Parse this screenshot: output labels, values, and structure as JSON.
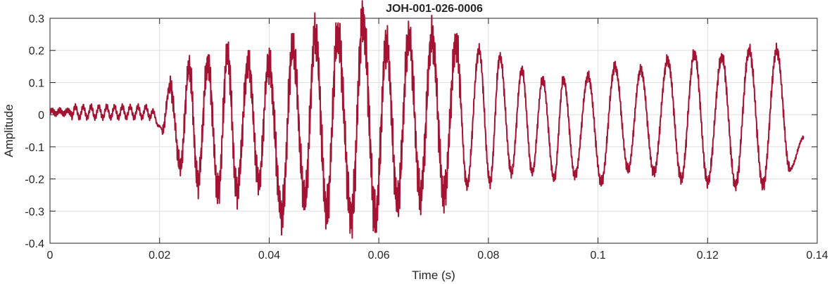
{
  "chart_data": {
    "type": "line",
    "title": "JOH-001-026-0006",
    "xlabel": "Time (s)",
    "ylabel": "Amplitude",
    "xlim": [
      0,
      0.14
    ],
    "ylim": [
      -0.4,
      0.3
    ],
    "xticks": [
      0,
      0.02,
      0.04,
      0.06,
      0.08,
      0.1,
      0.12,
      0.14
    ],
    "xtick_labels": [
      "0",
      "0.02",
      "0.04",
      "0.06",
      "0.08",
      "0.1",
      "0.12",
      "0.14"
    ],
    "yticks": [
      -0.4,
      -0.3,
      -0.2,
      -0.1,
      0,
      0.1,
      0.2,
      0.3
    ],
    "ytick_labels": [
      "-0.4",
      "-0.3",
      "-0.2",
      "-0.1",
      "0",
      "0.1",
      "0.2",
      "0.3"
    ],
    "grid": true,
    "line_color": "#A51332",
    "series": [
      {
        "x_start": 0,
        "x_end": 0.1376,
        "peaks": [
          {
            "t": 0.0219,
            "v": 0.09
          },
          {
            "t": 0.0254,
            "v": 0.15
          },
          {
            "t": 0.0288,
            "v": 0.16
          },
          {
            "t": 0.0324,
            "v": 0.19
          },
          {
            "t": 0.0362,
            "v": 0.16
          },
          {
            "t": 0.0399,
            "v": 0.16
          },
          {
            "t": 0.0443,
            "v": 0.21
          },
          {
            "t": 0.0484,
            "v": 0.25
          },
          {
            "t": 0.0525,
            "v": 0.25
          },
          {
            "t": 0.0571,
            "v": 0.29
          },
          {
            "t": 0.0614,
            "v": 0.22
          },
          {
            "t": 0.0655,
            "v": 0.24
          },
          {
            "t": 0.0697,
            "v": 0.24
          },
          {
            "t": 0.0741,
            "v": 0.22
          },
          {
            "t": 0.0783,
            "v": 0.2
          },
          {
            "t": 0.0821,
            "v": 0.18
          },
          {
            "t": 0.0861,
            "v": 0.14
          },
          {
            "t": 0.0899,
            "v": 0.11
          },
          {
            "t": 0.0937,
            "v": 0.11
          },
          {
            "t": 0.0982,
            "v": 0.12
          },
          {
            "t": 0.1031,
            "v": 0.15
          },
          {
            "t": 0.1078,
            "v": 0.14
          },
          {
            "t": 0.1127,
            "v": 0.17
          },
          {
            "t": 0.1176,
            "v": 0.19
          },
          {
            "t": 0.1226,
            "v": 0.18
          },
          {
            "t": 0.1276,
            "v": 0.2
          },
          {
            "t": 0.1326,
            "v": 0.2
          }
        ],
        "troughs": [
          {
            "t": 0.0205,
            "v": -0.05
          },
          {
            "t": 0.0238,
            "v": -0.16
          },
          {
            "t": 0.027,
            "v": -0.21
          },
          {
            "t": 0.0307,
            "v": -0.24
          },
          {
            "t": 0.0341,
            "v": -0.24
          },
          {
            "t": 0.0381,
            "v": -0.21
          },
          {
            "t": 0.0423,
            "v": -0.31
          },
          {
            "t": 0.0465,
            "v": -0.26
          },
          {
            "t": 0.0505,
            "v": -0.3
          },
          {
            "t": 0.055,
            "v": -0.32
          },
          {
            "t": 0.0594,
            "v": -0.32
          },
          {
            "t": 0.0634,
            "v": -0.27
          },
          {
            "t": 0.0676,
            "v": -0.25
          },
          {
            "t": 0.0719,
            "v": -0.25
          },
          {
            "t": 0.0761,
            "v": -0.22
          },
          {
            "t": 0.0803,
            "v": -0.21
          },
          {
            "t": 0.0842,
            "v": -0.18
          },
          {
            "t": 0.088,
            "v": -0.18
          },
          {
            "t": 0.092,
            "v": -0.2
          },
          {
            "t": 0.0958,
            "v": -0.19
          },
          {
            "t": 0.1006,
            "v": -0.21
          },
          {
            "t": 0.1055,
            "v": -0.17
          },
          {
            "t": 0.1102,
            "v": -0.18
          },
          {
            "t": 0.1152,
            "v": -0.2
          },
          {
            "t": 0.12,
            "v": -0.21
          },
          {
            "t": 0.1251,
            "v": -0.22
          },
          {
            "t": 0.1301,
            "v": -0.22
          },
          {
            "t": 0.135,
            "v": -0.17
          }
        ],
        "end_value": -0.07
      }
    ]
  }
}
